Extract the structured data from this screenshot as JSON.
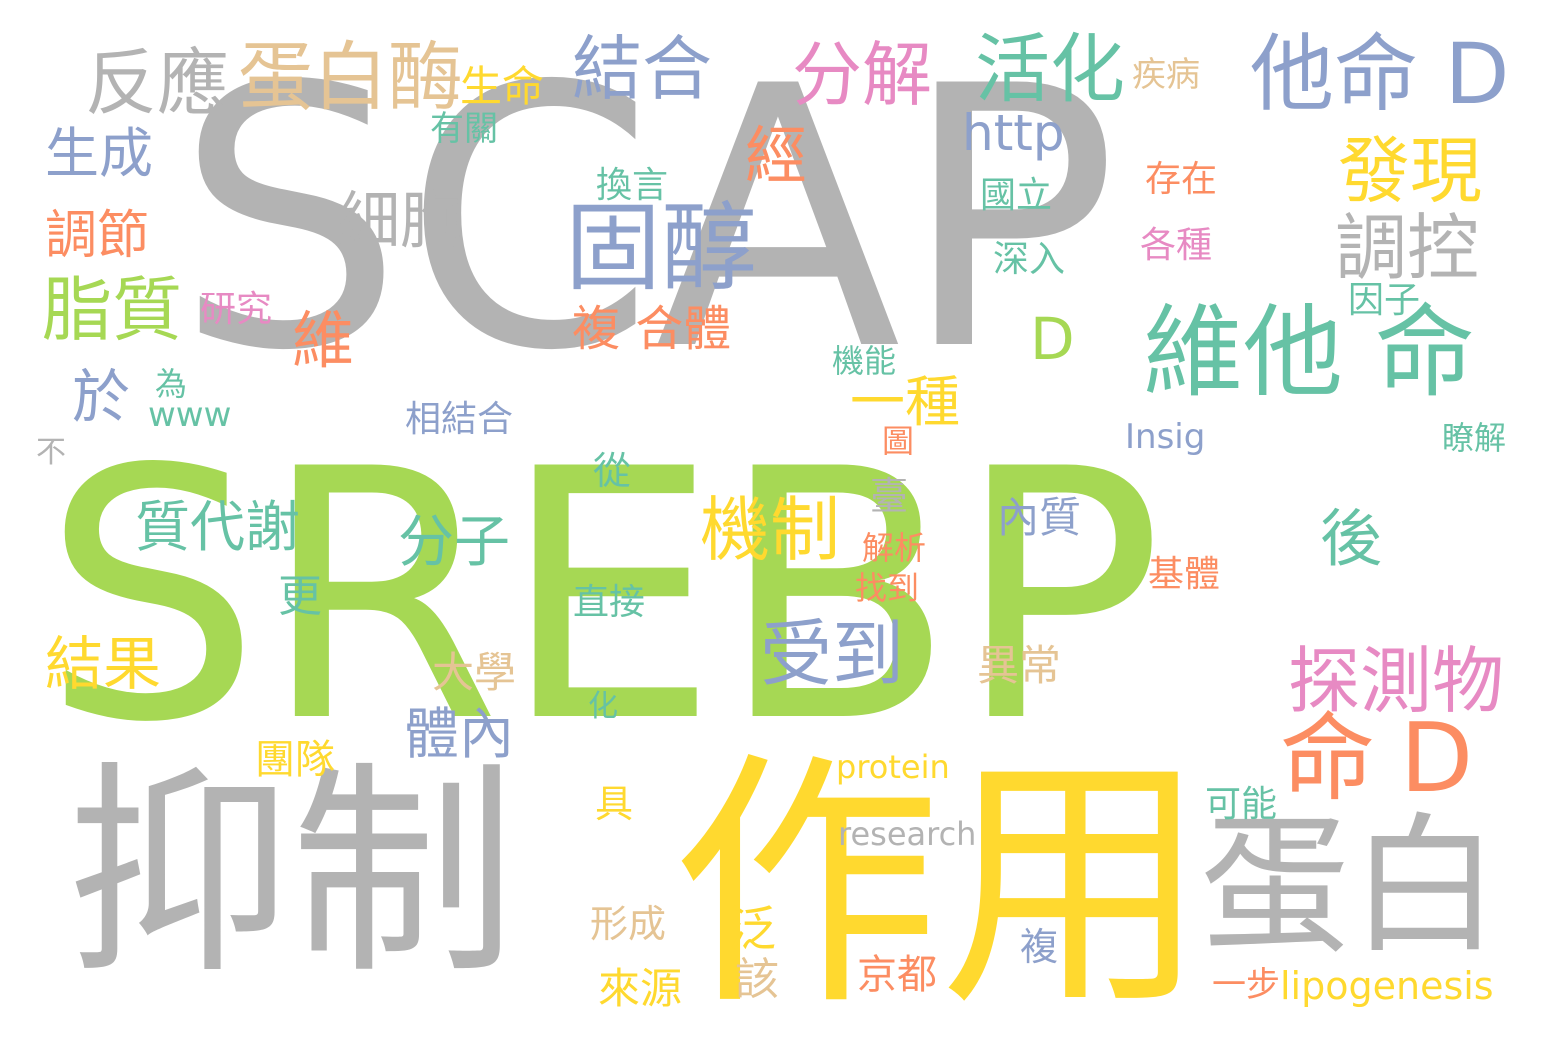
{
  "palette": {
    "gray": "#b3b3b3",
    "green": "#a6d854",
    "yellow": "#ffd92f",
    "blue": "#8da0cb",
    "teal": "#66c2a5",
    "orange": "#fc8d62",
    "pink": "#e78ac3",
    "tan": "#e5c494"
  },
  "words": [
    {
      "text": "SCAP",
      "color": "gray"
    },
    {
      "text": "SREBP",
      "color": "green"
    },
    {
      "text": "抑制",
      "color": "gray"
    },
    {
      "text": "作用",
      "color": "yellow"
    },
    {
      "text": "蛋白",
      "color": "gray"
    },
    {
      "text": "固醇",
      "color": "blue"
    },
    {
      "text": "維他 命",
      "color": "teal"
    },
    {
      "text": "蛋白酶",
      "color": "tan"
    },
    {
      "text": "反應",
      "color": "gray"
    },
    {
      "text": "結合",
      "color": "blue"
    },
    {
      "text": "他命 D",
      "color": "blue"
    },
    {
      "text": "分解",
      "color": "pink"
    },
    {
      "text": "活化",
      "color": "teal"
    },
    {
      "text": "命",
      "color": "orange"
    },
    {
      "text": "D",
      "color": "orange"
    },
    {
      "text": "發現",
      "color": "yellow"
    },
    {
      "text": "調控",
      "color": "gray"
    },
    {
      "text": "機制",
      "color": "yellow"
    },
    {
      "text": "探測物",
      "color": "pink"
    },
    {
      "text": "脂質",
      "color": "green"
    },
    {
      "text": "受到",
      "color": "blue"
    },
    {
      "text": "細胞",
      "color": "gray"
    },
    {
      "text": "質代謝",
      "color": "teal"
    },
    {
      "text": "生成",
      "color": "blue"
    },
    {
      "text": "調節",
      "color": "orange"
    },
    {
      "text": "複 合體",
      "color": "orange"
    },
    {
      "text": "分子",
      "color": "teal"
    },
    {
      "text": "體內",
      "color": "blue"
    },
    {
      "text": "結果",
      "color": "yellow"
    },
    {
      "text": "經",
      "color": "orange"
    },
    {
      "text": "一種",
      "color": "yellow"
    },
    {
      "text": "後",
      "color": "teal"
    },
    {
      "text": "http",
      "color": "blue"
    },
    {
      "text": "D",
      "color": "green"
    },
    {
      "text": "維",
      "color": "orange"
    },
    {
      "text": "於",
      "color": "blue"
    },
    {
      "text": "生命",
      "color": "yellow"
    },
    {
      "text": "lipogenesis",
      "color": "yellow"
    },
    {
      "text": "research",
      "color": "gray"
    },
    {
      "text": "protein",
      "color": "yellow"
    },
    {
      "text": "泛",
      "color": "yellow"
    },
    {
      "text": "www",
      "color": "teal"
    },
    {
      "text": "Insig",
      "color": "blue"
    },
    {
      "text": "有關",
      "color": "teal"
    },
    {
      "text": "疾病",
      "color": "tan"
    },
    {
      "text": "研究",
      "color": "pink"
    },
    {
      "text": "換言",
      "color": "teal"
    },
    {
      "text": "存在",
      "color": "orange"
    },
    {
      "text": "各種",
      "color": "pink"
    },
    {
      "text": "國立",
      "color": "teal"
    },
    {
      "text": "深入",
      "color": "teal"
    },
    {
      "text": "因子",
      "color": "teal"
    },
    {
      "text": "機能",
      "color": "teal"
    },
    {
      "text": "相結合",
      "color": "blue"
    },
    {
      "text": "內質",
      "color": "blue"
    },
    {
      "text": "臺",
      "color": "gray"
    },
    {
      "text": "解析",
      "color": "orange"
    },
    {
      "text": "基體",
      "color": "orange"
    },
    {
      "text": "直接",
      "color": "teal"
    },
    {
      "text": "找到",
      "color": "orange"
    },
    {
      "text": "異常",
      "color": "tan"
    },
    {
      "text": "大學",
      "color": "tan"
    },
    {
      "text": "團隊",
      "color": "yellow"
    },
    {
      "text": "具",
      "color": "yellow"
    },
    {
      "text": "可能",
      "color": "teal"
    },
    {
      "text": "形成",
      "color": "tan"
    },
    {
      "text": "京都",
      "color": "orange"
    },
    {
      "text": "複",
      "color": "blue"
    },
    {
      "text": "來源",
      "color": "yellow"
    },
    {
      "text": "該",
      "color": "tan"
    },
    {
      "text": "一步",
      "color": "orange"
    },
    {
      "text": "化",
      "color": "teal"
    },
    {
      "text": "更",
      "color": "teal"
    },
    {
      "text": "從",
      "color": "teal"
    },
    {
      "text": "不",
      "color": "gray"
    },
    {
      "text": "為",
      "color": "teal"
    },
    {
      "text": "圖",
      "color": "orange"
    },
    {
      "text": "瞭解",
      "color": "teal"
    }
  ]
}
